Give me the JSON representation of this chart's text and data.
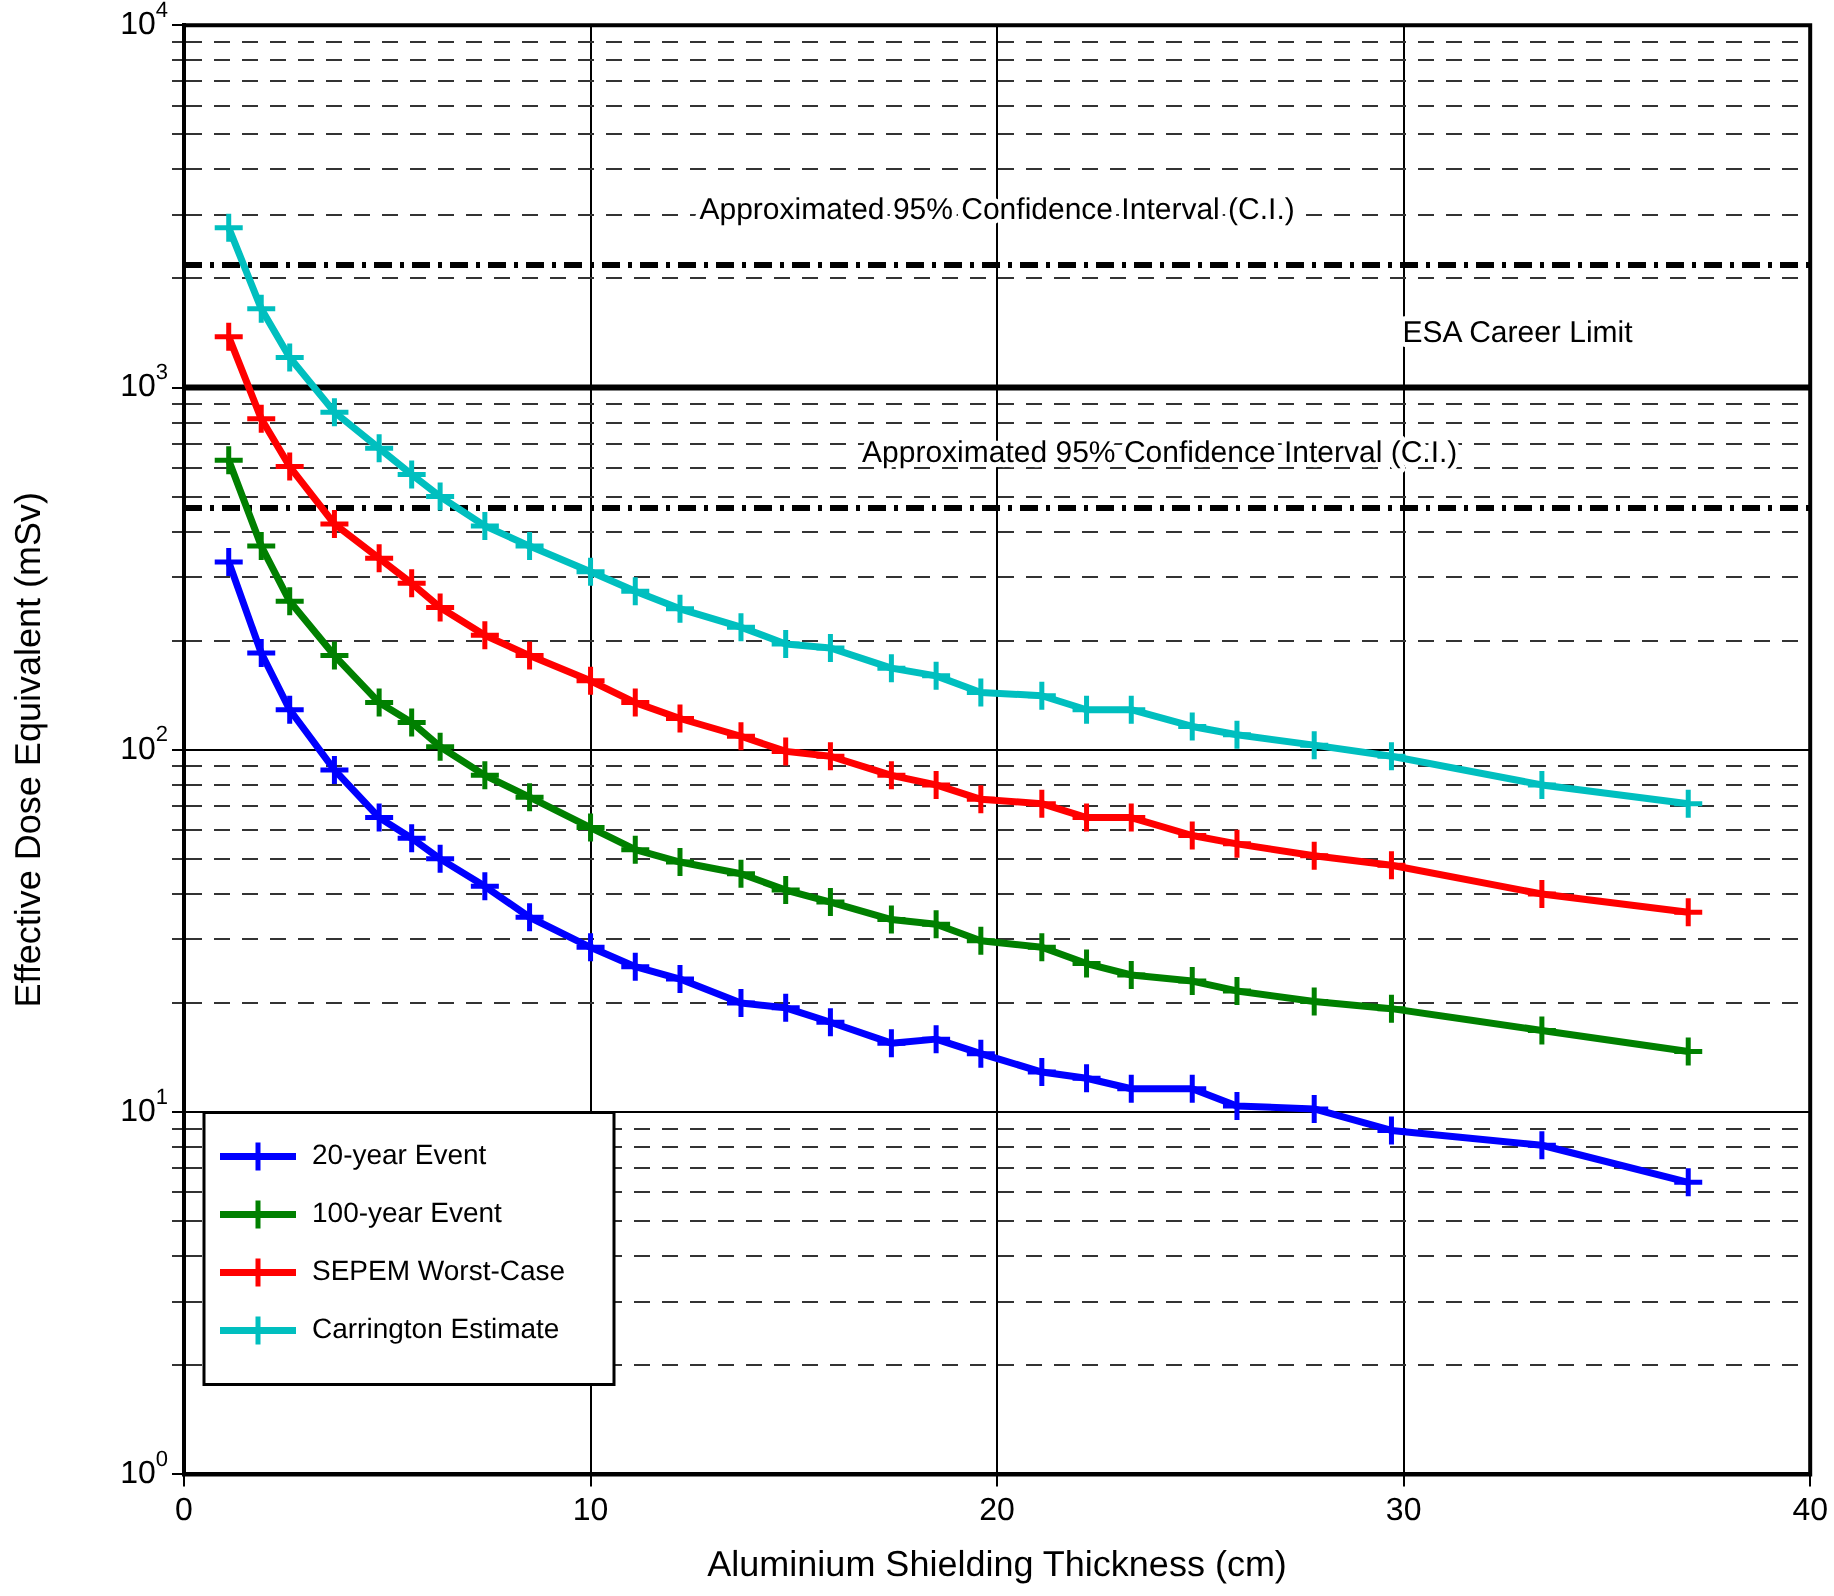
{
  "chart_data": {
    "type": "line",
    "xlabel": "Aluminium Shielding Thickness (cm)",
    "ylabel": "Effective Dose Equivalent (mSv)",
    "x": [
      1.1,
      1.9,
      2.6,
      3.7,
      4.8,
      5.6,
      6.3,
      7.4,
      8.5,
      10,
      11.1,
      12.2,
      13.7,
      14.8,
      15.9,
      17.4,
      18.5,
      19.6,
      21.1,
      22.2,
      23.3,
      24.8,
      25.9,
      27.8,
      29.7,
      33.4,
      37.0
    ],
    "series": [
      {
        "name": "20-year Event",
        "color": "#0000ff",
        "values": [
          330,
          185,
          129,
          88,
          65,
          57,
          50,
          42,
          34.5,
          28.5,
          25.2,
          23.3,
          20,
          19.4,
          17.7,
          15.5,
          15.9,
          14.5,
          12.9,
          12.4,
          11.6,
          11.6,
          10.4,
          10.2,
          8.9,
          8.1,
          6.4
        ]
      },
      {
        "name": "100-year Event",
        "color": "#008000",
        "values": [
          630,
          365,
          257,
          182,
          135,
          119,
          102,
          85,
          74,
          61,
          53,
          49,
          45.5,
          41,
          38,
          34,
          33,
          29.7,
          28.5,
          25.7,
          23.9,
          23,
          21.6,
          20.2,
          19.3,
          16.8,
          14.7
        ]
      },
      {
        "name": "SEPEM Worst-Case",
        "color": "#ff0000",
        "values": [
          1380,
          820,
          605,
          420,
          338,
          288,
          247,
          207,
          182,
          155,
          135,
          122,
          109,
          99,
          96,
          85,
          80,
          73,
          71,
          65,
          65,
          58,
          55,
          51,
          48,
          40,
          35.6
        ]
      },
      {
        "name": "Carrington Estimate",
        "color": "#00bfbf",
        "values": [
          2760,
          1650,
          1210,
          855,
          680,
          575,
          500,
          415,
          365,
          310,
          274,
          245,
          218,
          196,
          191,
          168,
          160,
          144,
          141,
          129,
          129,
          116,
          110,
          103,
          96,
          80,
          71
        ]
      }
    ],
    "xlim": [
      0,
      40
    ],
    "xticks": [
      0,
      10,
      20,
      30,
      40
    ],
    "ylim": [
      1,
      10000
    ],
    "log": true,
    "yticks": [
      {
        "value": 1,
        "label": "10$^{0}$"
      },
      {
        "value": 2,
        "label": null
      },
      {
        "value": 3,
        "label": null
      },
      {
        "value": 4,
        "label": null
      },
      {
        "value": 5,
        "label": null
      },
      {
        "value": 6,
        "label": null
      },
      {
        "value": 7,
        "label": null
      },
      {
        "value": 8,
        "label": null
      },
      {
        "value": 9,
        "label": null
      },
      {
        "value": 10,
        "label": "10$^{1}$"
      },
      {
        "value": 20,
        "label": null
      },
      {
        "value": 30,
        "label": null
      },
      {
        "value": 40,
        "label": null
      },
      {
        "value": 50,
        "label": null
      },
      {
        "value": 60,
        "label": null
      },
      {
        "value": 70,
        "label": null
      },
      {
        "value": 80,
        "label": null
      },
      {
        "value": 90,
        "label": null
      },
      {
        "value": 100,
        "label": "10$^{2}$"
      },
      {
        "value": 200,
        "label": null
      },
      {
        "value": 300,
        "label": null
      },
      {
        "value": 400,
        "label": null
      },
      {
        "value": 500,
        "label": null
      },
      {
        "value": 600,
        "label": null
      },
      {
        "value": 700,
        "label": null
      },
      {
        "value": 800,
        "label": null
      },
      {
        "value": 900,
        "label": null
      },
      {
        "value": 1000,
        "label": "10$^{3}$"
      },
      {
        "value": 2000,
        "label": null
      },
      {
        "value": 3000,
        "label": null
      },
      {
        "value": 4000,
        "label": null
      },
      {
        "value": 5000,
        "label": null
      },
      {
        "value": 6000,
        "label": null
      },
      {
        "value": 7000,
        "label": null
      },
      {
        "value": 8000,
        "label": null
      },
      {
        "value": 9000,
        "label": null
      },
      {
        "value": 10000,
        "label": "10$^{4}$"
      }
    ],
    "ref_lines": [
      {
        "axis": "y",
        "value": 2180,
        "label": "Approximated 95% Confidence Interval (C.I.)",
        "color": "#000000",
        "line_style": "dashdot"
      },
      {
        "axis": "y",
        "value": 1000,
        "label": "ESA Career Limit",
        "color": "#000000",
        "line_style": "solid"
      },
      {
        "axis": "y",
        "value": 465,
        "label": "Approximated 95% Confidence Interval (C.I.)",
        "color": "#000000",
        "line_style": "dashdot"
      }
    ],
    "grid": true,
    "legend": "bottom left",
    "marker": "cross",
    "line_style": "solid"
  }
}
